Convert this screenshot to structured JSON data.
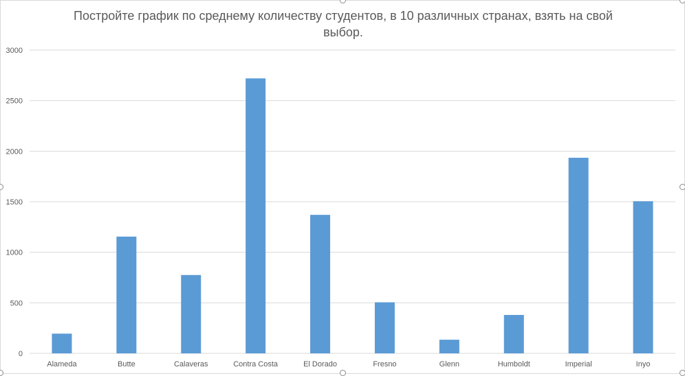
{
  "chart_data": {
    "type": "bar",
    "title": "Постройте график по среднему количеству студентов, в 10 различных странах, взять на свой выбор.",
    "categories": [
      "Alameda",
      "Butte",
      "Calaveras",
      "Contra Costa",
      "El Dorado",
      "Fresno",
      "Glenn",
      "Humboldt",
      "Imperial",
      "Inyo"
    ],
    "values": [
      195,
      1155,
      775,
      2720,
      1370,
      505,
      135,
      380,
      1935,
      1505
    ],
    "ylim": [
      0,
      3000
    ],
    "yticks": [
      0,
      500,
      1000,
      1500,
      2000,
      2500,
      3000
    ],
    "xlabel": "",
    "ylabel": "",
    "grid": true,
    "legend": "none",
    "bar_color": "#5b9bd5",
    "grid_color": "#d9d9d9"
  }
}
